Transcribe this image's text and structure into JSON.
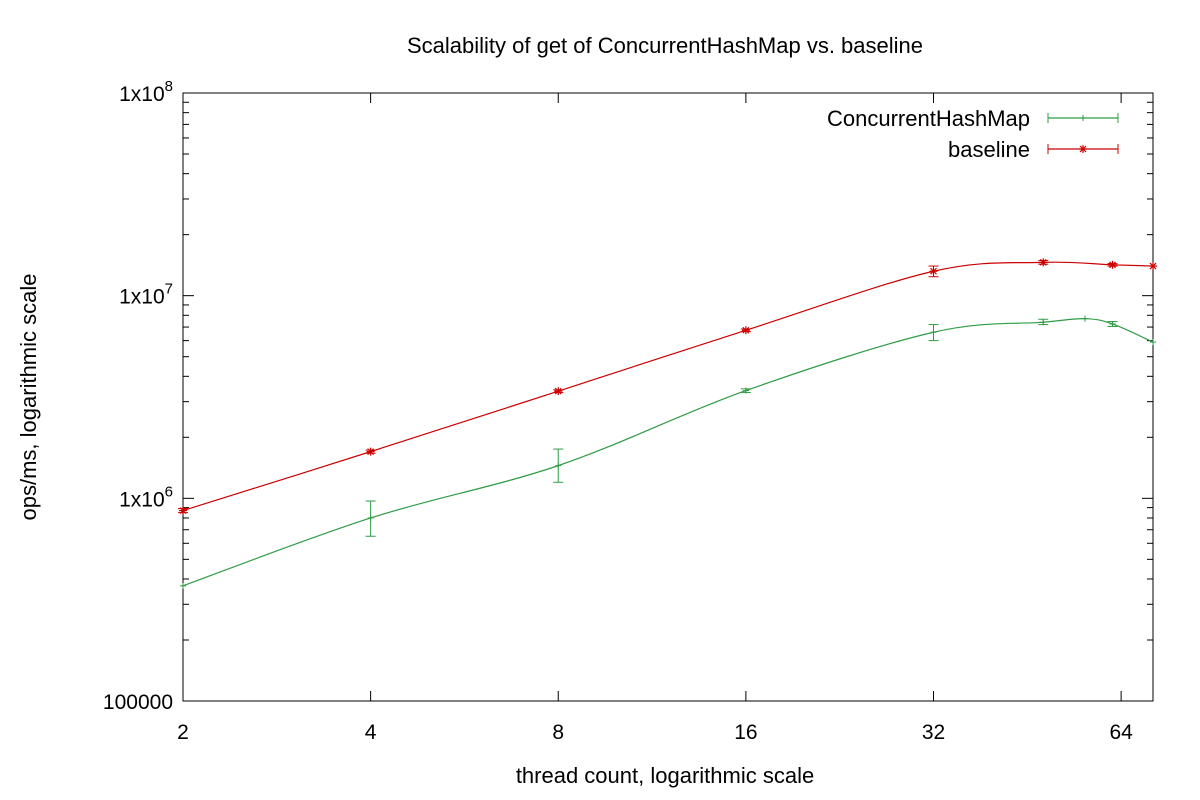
{
  "chart_data": {
    "type": "line",
    "title": "Scalability of get of ConcurrentHashMap vs. baseline",
    "xlabel": "thread count, logarithmic scale",
    "ylabel": "ops/ms, logarithmic scale",
    "x_scale": "log2",
    "y_scale": "log10",
    "xlim": [
      2,
      72
    ],
    "ylim": [
      100000,
      100000000
    ],
    "x_ticks": [
      2,
      4,
      8,
      16,
      32,
      64
    ],
    "x_tick_labels": [
      "2",
      "4",
      "8",
      "16",
      "32",
      "64"
    ],
    "y_ticks": [
      100000,
      1000000,
      10000000,
      100000000
    ],
    "y_tick_labels": [
      {
        "base": "100000",
        "exp": ""
      },
      {
        "base": "1x10",
        "exp": "6"
      },
      {
        "base": "1x10",
        "exp": "7"
      },
      {
        "base": "1x10",
        "exp": "8"
      }
    ],
    "legend_position": "top-right",
    "grid": false,
    "series": [
      {
        "name": "ConcurrentHashMap",
        "color": "#2e9b45",
        "marker": "plus",
        "points": [
          {
            "x": 2,
            "y": 370000,
            "err_low": 370000,
            "err_high": 370000
          },
          {
            "x": 4,
            "y": 800000,
            "err_low": 650000,
            "err_high": 970000
          },
          {
            "x": 8,
            "y": 1450000,
            "err_low": 1200000,
            "err_high": 1750000
          },
          {
            "x": 16,
            "y": 3400000,
            "err_low": 3330000,
            "err_high": 3470000
          },
          {
            "x": 32,
            "y": 6600000,
            "err_low": 6000000,
            "err_high": 7200000
          },
          {
            "x": 48,
            "y": 7400000,
            "err_low": 7200000,
            "err_high": 7650000
          },
          {
            "x": 56,
            "y": 7700000,
            "err_low": 7700000,
            "err_high": 7700000
          },
          {
            "x": 62,
            "y": 7250000,
            "err_low": 7050000,
            "err_high": 7450000
          },
          {
            "x": 72,
            "y": 5900000,
            "err_low": 5900000,
            "err_high": 5900000
          }
        ]
      },
      {
        "name": "baseline",
        "color": "#cc0000",
        "marker": "star",
        "points": [
          {
            "x": 2,
            "y": 870000,
            "err_low": 850000,
            "err_high": 890000
          },
          {
            "x": 4,
            "y": 1700000,
            "err_low": 1670000,
            "err_high": 1730000
          },
          {
            "x": 8,
            "y": 3380000,
            "err_low": 3330000,
            "err_high": 3430000
          },
          {
            "x": 16,
            "y": 6750000,
            "err_low": 6650000,
            "err_high": 6850000
          },
          {
            "x": 32,
            "y": 13200000,
            "err_low": 12400000,
            "err_high": 14000000
          },
          {
            "x": 48,
            "y": 14600000,
            "err_low": 14300000,
            "err_high": 14900000
          },
          {
            "x": 62,
            "y": 14200000,
            "err_low": 14000000,
            "err_high": 14400000
          },
          {
            "x": 72,
            "y": 14000000,
            "err_low": 14000000,
            "err_high": 14000000
          }
        ]
      }
    ]
  }
}
